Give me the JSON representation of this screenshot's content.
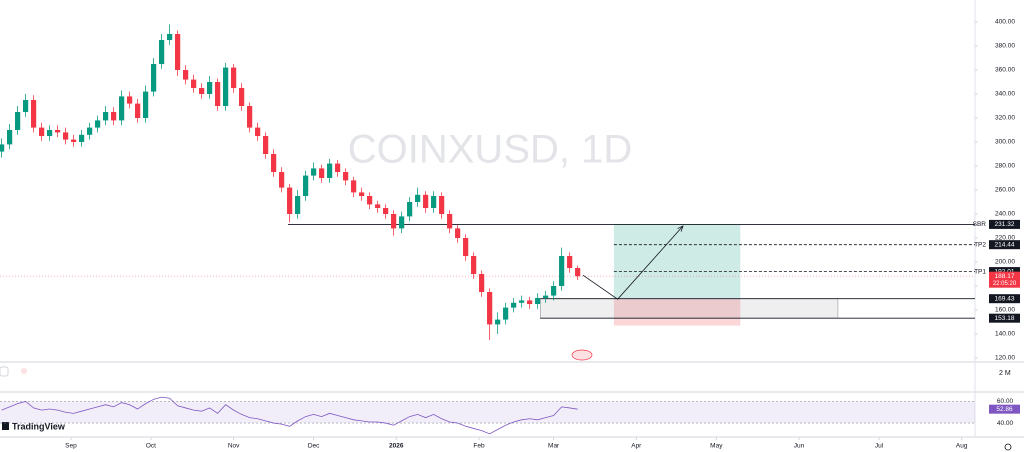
{
  "chart_data": {
    "type": "candlestick",
    "watermark": "COINXUSD, 1D",
    "up_color": "#089981",
    "down_color": "#f23645",
    "x": [
      -26,
      -23,
      -20,
      -17,
      -14,
      -11,
      -8,
      -5,
      -2,
      1,
      4,
      7,
      10,
      13,
      16,
      19,
      22,
      25,
      28,
      31,
      34,
      37,
      40,
      43,
      46,
      49,
      52,
      55,
      58,
      61,
      64,
      67,
      70,
      73,
      76,
      79,
      82,
      85,
      88,
      91,
      94,
      97,
      100,
      103,
      106,
      109,
      112,
      115,
      118,
      121,
      124,
      127,
      130,
      133,
      136,
      139,
      142,
      145,
      148,
      151,
      154,
      157,
      160,
      163,
      166,
      169,
      172,
      175,
      178,
      181,
      184,
      187,
      190
    ],
    "open": [
      292,
      298,
      310,
      325,
      335,
      312,
      305,
      310,
      308,
      302,
      300,
      306,
      312,
      318,
      325,
      318,
      338,
      332,
      320,
      342,
      365,
      385,
      390,
      360,
      352,
      345,
      340,
      350,
      330,
      362,
      345,
      330,
      312,
      305,
      290,
      275,
      262,
      240,
      255,
      272,
      278,
      270,
      282,
      275,
      268,
      258,
      255,
      248,
      245,
      240,
      228,
      238,
      250,
      256,
      245,
      255,
      240,
      228,
      220,
      205,
      190,
      175,
      148,
      152,
      162,
      166,
      168,
      165,
      170,
      172,
      180,
      205,
      195
    ],
    "high": [
      303,
      315,
      330,
      340,
      339,
      316,
      314,
      314,
      312,
      306,
      310,
      316,
      322,
      330,
      329,
      343,
      342,
      336,
      347,
      370,
      390,
      398,
      393,
      364,
      356,
      349,
      355,
      353,
      366,
      365,
      349,
      333,
      316,
      308,
      294,
      279,
      265,
      260,
      276,
      283,
      281,
      286,
      285,
      278,
      271,
      262,
      258,
      251,
      248,
      243,
      242,
      254,
      262,
      259,
      259,
      258,
      243,
      231,
      223,
      208,
      193,
      178,
      158,
      166,
      170,
      172,
      171,
      174,
      176,
      184,
      212,
      208,
      197
    ],
    "low": [
      287,
      294,
      306,
      321,
      308,
      301,
      301,
      304,
      298,
      296,
      296,
      302,
      308,
      314,
      314,
      314,
      328,
      316,
      316,
      338,
      361,
      381,
      355,
      348,
      341,
      336,
      336,
      326,
      326,
      341,
      326,
      308,
      301,
      286,
      271,
      258,
      233,
      236,
      251,
      268,
      266,
      266,
      271,
      264,
      254,
      251,
      244,
      241,
      236,
      222,
      224,
      234,
      246,
      241,
      241,
      236,
      224,
      216,
      201,
      186,
      171,
      135,
      140,
      148,
      158,
      162,
      161,
      161,
      166,
      168,
      176,
      191,
      185
    ],
    "close": [
      298,
      310,
      325,
      335,
      312,
      305,
      310,
      308,
      302,
      300,
      306,
      312,
      318,
      325,
      318,
      338,
      332,
      320,
      342,
      365,
      385,
      390,
      360,
      352,
      345,
      340,
      350,
      330,
      362,
      345,
      330,
      312,
      305,
      290,
      275,
      262,
      240,
      255,
      272,
      278,
      270,
      282,
      275,
      268,
      258,
      255,
      248,
      245,
      240,
      228,
      238,
      250,
      256,
      245,
      255,
      240,
      228,
      220,
      205,
      190,
      175,
      148,
      152,
      162,
      166,
      168,
      165,
      170,
      172,
      180,
      205,
      195,
      188.17
    ],
    "last_price": 188.17,
    "countdown": "22:05:20",
    "xlim": [
      -26.6,
      339
    ],
    "xticks": [
      {
        "value": 0,
        "label": "Sep"
      },
      {
        "value": 30,
        "label": "Oct"
      },
      {
        "value": 61,
        "label": "Nov"
      },
      {
        "value": 91,
        "label": "Dec"
      },
      {
        "value": 122,
        "label": "2026"
      },
      {
        "value": 153,
        "label": "Feb"
      },
      {
        "value": 181,
        "label": "Mar"
      },
      {
        "value": 212,
        "label": "Apr"
      },
      {
        "value": 242,
        "label": "May"
      },
      {
        "value": 273,
        "label": "Jun"
      },
      {
        "value": 303,
        "label": "Jul"
      },
      {
        "value": 334,
        "label": "Aug"
      }
    ],
    "ylim": [
      116.67,
      418.33
    ],
    "yticks": [
      {
        "value": 120,
        "label": "120.00"
      },
      {
        "value": 140,
        "label": "140.00"
      },
      {
        "value": 160,
        "label": "160.00"
      },
      {
        "value": 180,
        "label": "180.00"
      },
      {
        "value": 200,
        "label": "200.00"
      },
      {
        "value": 220,
        "label": "220.00"
      },
      {
        "value": 240,
        "label": "240.00"
      },
      {
        "value": 260,
        "label": "260.00"
      },
      {
        "value": 280,
        "label": "280.00"
      },
      {
        "value": 300,
        "label": "300.00"
      },
      {
        "value": 320,
        "label": "320.00"
      },
      {
        "value": 340,
        "label": "340.00"
      },
      {
        "value": 360,
        "label": "360.00"
      },
      {
        "value": 380,
        "label": "380.00"
      },
      {
        "value": 400,
        "label": "400.00"
      }
    ],
    "levels": [
      {
        "name": "SBR",
        "value": 231.32,
        "x_start": 81.4,
        "style": "solid"
      },
      {
        "name": "TP2",
        "value": 214.44,
        "x_start": 203.6,
        "style": "dashed"
      },
      {
        "name": "TP1",
        "value": 192.01,
        "x_start": 203.6,
        "style": "dashed"
      },
      {
        "value": 169.43,
        "x_start": 176,
        "style": "solid"
      },
      {
        "value": 153.18,
        "x_start": 176,
        "style": "solid"
      }
    ],
    "target_box": {
      "x": [
        203.6,
        251
      ],
      "top": 231.32,
      "entry": 169.43,
      "stop": 147
    },
    "range_box": {
      "x": [
        176,
        287.6
      ],
      "top": 169.43,
      "bottom": 153.18
    },
    "arrow": {
      "x": [
        192,
        205,
        229.5
      ],
      "y": [
        189,
        169,
        230
      ]
    },
    "volume_pane_label": "2 M",
    "rsi": {
      "color": "#7e57c2",
      "values": [
        52,
        55,
        58,
        60,
        54,
        52,
        53,
        52,
        50,
        49,
        51,
        53,
        55,
        57,
        55,
        59,
        57,
        53,
        58,
        62,
        64,
        63,
        56,
        54,
        52,
        51,
        54,
        49,
        57,
        52,
        48,
        45,
        44,
        42,
        40,
        39,
        37,
        42,
        46,
        48,
        46,
        49,
        47,
        45,
        43,
        42,
        41,
        41,
        40,
        38,
        42,
        46,
        48,
        45,
        48,
        44,
        41,
        40,
        37,
        35,
        33,
        30,
        34,
        38,
        41,
        43,
        44,
        43,
        45,
        47,
        55,
        54,
        52.86
      ],
      "last": 52.86,
      "ylim": [
        28,
        66
      ],
      "yticks": [
        {
          "value": 40,
          "label": "40.00"
        },
        {
          "value": 60,
          "label": "60.00"
        }
      ]
    },
    "brand": "TradingView"
  }
}
